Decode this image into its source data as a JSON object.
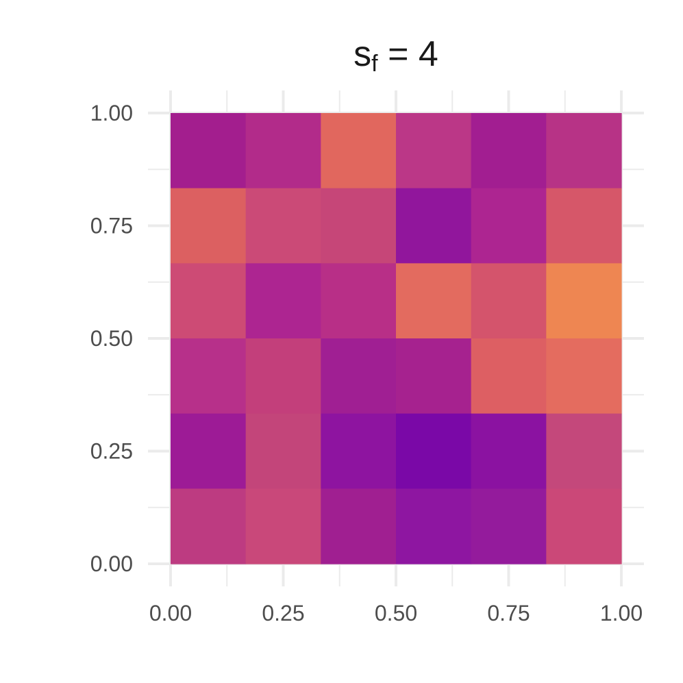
{
  "chart_data": {
    "type": "heatmap",
    "title": {
      "base": "s",
      "subscript": "f",
      "rest": " = 4"
    },
    "xlabel": "",
    "ylabel": "",
    "xlim": [
      0,
      1
    ],
    "ylim": [
      0,
      1
    ],
    "x_ticks": [
      "0.00",
      "0.25",
      "0.50",
      "0.75",
      "1.00"
    ],
    "y_ticks": [
      "0.00",
      "0.25",
      "0.50",
      "0.75",
      "1.00"
    ],
    "grid": true,
    "legend": "none",
    "colormap": "plasma",
    "n_cols": 6,
    "n_rows": 6,
    "cell_colors_top_to_bottom": [
      [
        "#a31e8e",
        "#b22b8a",
        "#e1675e",
        "#bb3787",
        "#a21e91",
        "#b73386"
      ],
      [
        "#dc6061",
        "#cb4a77",
        "#c64678",
        "#91169c",
        "#ad2591",
        "#d65769"
      ],
      [
        "#cd4b75",
        "#ad2591",
        "#b82f87",
        "#e36b5f",
        "#d4546c",
        "#ee8652"
      ],
      [
        "#b7308a",
        "#c33f7b",
        "#a01f93",
        "#a6228f",
        "#dd5f63",
        "#e46c5f"
      ],
      [
        "#9d1b96",
        "#c3457a",
        "#8e14a0",
        "#7a08a7",
        "#8b12a1",
        "#c4487b"
      ],
      [
        "#bd3b81",
        "#c9487a",
        "#a01f91",
        "#8e16a1",
        "#941b9c",
        "#cb4878"
      ]
    ]
  }
}
